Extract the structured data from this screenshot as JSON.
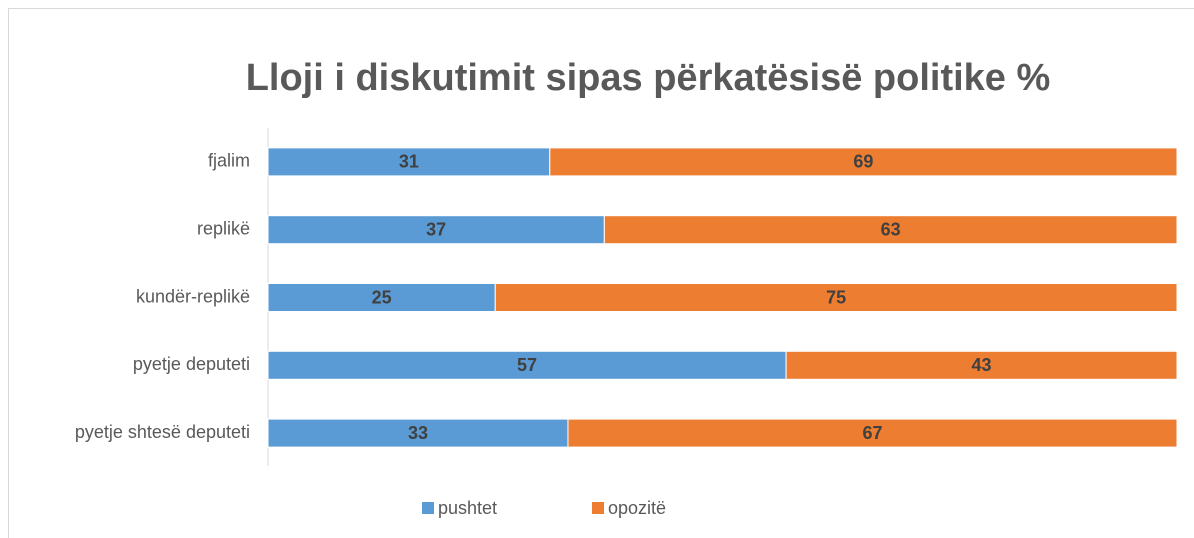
{
  "chart_data": {
    "type": "stacked-bar-horizontal",
    "title": "Lloji i diskutimit sipas përkatësisë politike %",
    "categories": [
      "fjalim",
      "replikë",
      "kundër-replikë",
      "pyetje deputeti",
      "pyetje shtesë deputeti"
    ],
    "series": [
      {
        "name": "pushtet",
        "color": "#5b9bd5",
        "values": [
          31,
          37,
          25,
          57,
          33
        ]
      },
      {
        "name": "opozitë",
        "color": "#ed7d31",
        "values": [
          69,
          63,
          75,
          43,
          67
        ]
      }
    ],
    "xlim": [
      0,
      100
    ],
    "legend": "bottom"
  }
}
